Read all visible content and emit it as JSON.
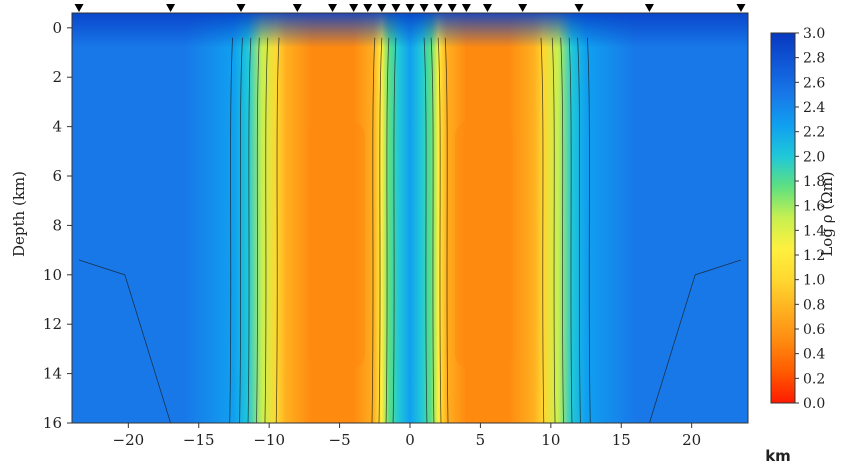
{
  "chart_data": {
    "type": "heatmap",
    "xlabel": "km",
    "ylabel": "Depth (km)",
    "xlim": [
      -24,
      24
    ],
    "ylim": [
      16,
      -0.6
    ],
    "x_ticks": [
      -20,
      -15,
      -10,
      -5,
      0,
      5,
      10,
      15,
      20
    ],
    "x_tick_labels": [
      "−20",
      "−15",
      "−10",
      "−5",
      "0",
      "5",
      "10",
      "15",
      "20"
    ],
    "y_ticks": [
      0,
      2,
      4,
      6,
      8,
      10,
      12,
      14,
      16
    ],
    "y_tick_labels": [
      "0",
      "2",
      "4",
      "6",
      "8",
      "10",
      "12",
      "14",
      "16"
    ],
    "colorbar": {
      "label": "Log ρ (Ωm)",
      "min": 0.0,
      "max": 3.0,
      "ticks": [
        "3.0",
        "2.8",
        "2.6",
        "2.4",
        "2.2",
        "2.0",
        "1.8",
        "1.6",
        "1.4",
        "1.2",
        "1.0",
        "0.8",
        "0.6",
        "0.4",
        "0.2",
        "0.0"
      ],
      "colors": [
        "#ff1a00",
        "#ff5a00",
        "#ff8a10",
        "#ffb020",
        "#ffd830",
        "#fff040",
        "#c8f050",
        "#60e080",
        "#20c8d8",
        "#10a0f0",
        "#1878e8",
        "#1058d8",
        "#0838c0"
      ]
    },
    "stations_km": [
      -23.5,
      -17,
      -12,
      -8,
      -5.5,
      -4,
      -3,
      -2,
      -1,
      0,
      1,
      2,
      3,
      4,
      5.5,
      8,
      12,
      17,
      23.5
    ],
    "features": [
      {
        "name": "conductor",
        "x_range": [
          -8.5,
          -2
        ],
        "depth_range": [
          0.4,
          16
        ],
        "log_rho_min": 0.5
      },
      {
        "name": "conductor",
        "x_range": [
          2,
          8.5
        ],
        "depth_range": [
          0.4,
          16
        ],
        "log_rho_min": 0.5
      }
    ],
    "background_log_rho": 2.5,
    "grid": false
  }
}
